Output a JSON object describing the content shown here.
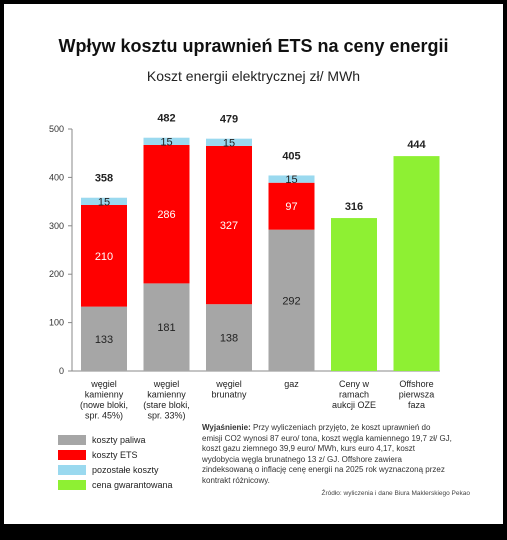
{
  "title": "Wpływ kosztu uprawnień ETS na ceny energii",
  "subtitle": "Koszt energii elektrycznej zł/ MWh",
  "chart_data": {
    "type": "bar",
    "stacked": true,
    "ylim": [
      0,
      500
    ],
    "yticks": [
      0,
      100,
      200,
      300,
      400,
      500
    ],
    "grid": false,
    "categories": [
      [
        "węgiel",
        "kamienny",
        "(nowe bloki,",
        "spr. 45%)"
      ],
      [
        "węgiel",
        "kamienny",
        "(stare bloki,",
        "spr. 33%)"
      ],
      [
        "węgiel",
        "brunatny"
      ],
      [
        "gaz"
      ],
      [
        "Ceny w",
        "ramach",
        "aukcji OZE"
      ],
      [
        "Offshore",
        "pierwsza",
        "faza"
      ]
    ],
    "series": [
      {
        "name": "koszty paliwa",
        "color": "#a6a6a6",
        "values": [
          133,
          181,
          138,
          292,
          null,
          null
        ],
        "label_color": "#222222"
      },
      {
        "name": "koszty ETS",
        "color": "#ff0000",
        "values": [
          210,
          286,
          327,
          97,
          null,
          null
        ],
        "label_color": "#ffffff"
      },
      {
        "name": "pozostałe koszty",
        "color": "#9ad9ef",
        "values": [
          15,
          15,
          15,
          15,
          null,
          null
        ],
        "label_color": "#222222"
      },
      {
        "name": "cena gwarantowana",
        "color": "#8ef033",
        "values": [
          null,
          null,
          null,
          null,
          316,
          444
        ],
        "label_color": "#222222"
      }
    ],
    "totals": [
      "358",
      "482",
      "479",
      "405",
      "316",
      "444"
    ],
    "segment_labels": [
      [
        "133",
        "210",
        "15"
      ],
      [
        "181",
        "286",
        "15"
      ],
      [
        "138",
        "327",
        "15"
      ],
      [
        "292",
        "97",
        "15"
      ],
      [],
      []
    ]
  },
  "note": {
    "label": "Wyjaśnienie:",
    "text": "Przy wyliczeniach przyjęto, że koszt uprawnień do emisji CO2 wynosi 87 euro/ tona, koszt węgla kamiennego 19,7 zł/ GJ, koszt gazu ziemnego 39,9 euro/ MWh, kurs euro 4,17, koszt wydobycia węgla brunatnego 13 z/ GJ. Offshore zawiera zindeksowaną o inflację cenę energii na 2025 rok wyznaczoną przez kontrakt różnicowy."
  },
  "source": "Źródło: wyliczenia i dane Biura Maklerskiego Pekao"
}
